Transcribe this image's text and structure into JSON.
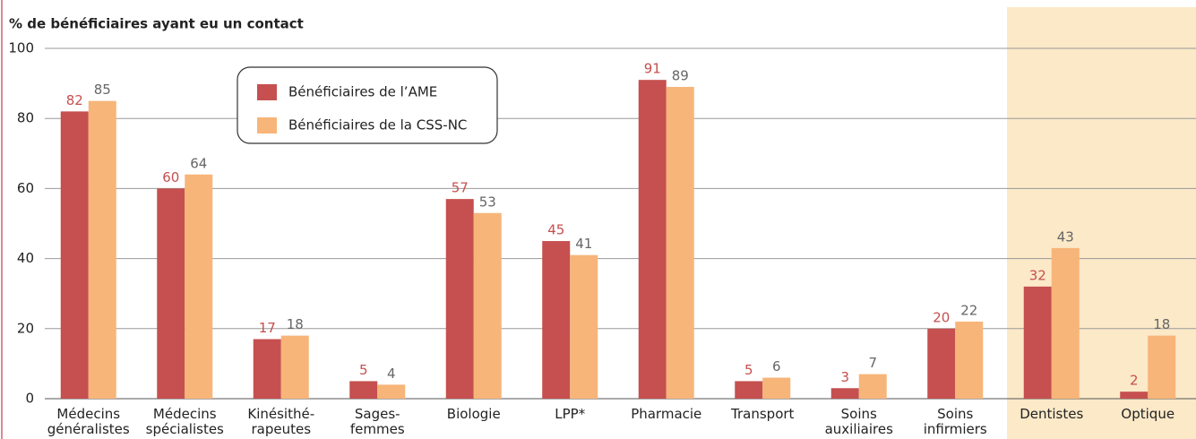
{
  "chart_data": {
    "type": "bar",
    "title": "% de bénéficiaires ayant eu un contact",
    "categories": [
      "Médecins\ngénéralistes",
      "Médecins\nspécialistes",
      "Kinésithé-\nrapeutes",
      "Sages-\nfemmes",
      "Biologie",
      "LPP*",
      "Pharmacie",
      "Transport",
      "Soins\nauxiliaires",
      "Soins\ninfirmiers",
      "Dentistes",
      "Optique"
    ],
    "series": [
      {
        "name": "Bénéficiaires de l’AME",
        "color": "#c5504f",
        "label_color": "#c5504f",
        "values": [
          82,
          60,
          17,
          5,
          57,
          45,
          91,
          5,
          3,
          20,
          32,
          2
        ]
      },
      {
        "name": "Bénéficiaires de la CSS-NC",
        "color": "#f7b579",
        "label_color": "#666666",
        "values": [
          85,
          64,
          18,
          4,
          53,
          41,
          89,
          6,
          7,
          22,
          43,
          18
        ]
      }
    ],
    "ylim": [
      0,
      100
    ],
    "yticks": [
      0,
      20,
      40,
      60,
      80,
      100
    ],
    "grid": true
  }
}
